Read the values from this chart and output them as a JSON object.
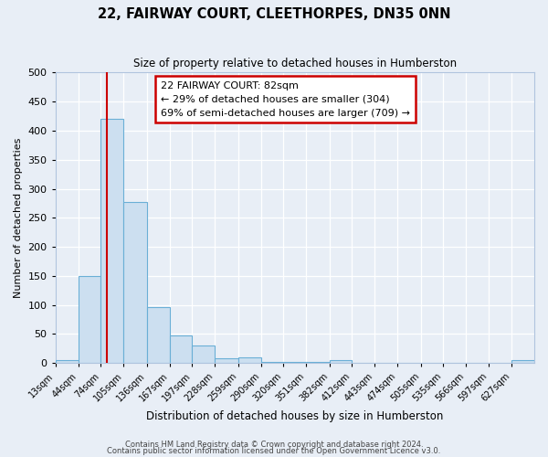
{
  "title": "22, FAIRWAY COURT, CLEETHORPES, DN35 0NN",
  "subtitle": "Size of property relative to detached houses in Humberston",
  "xlabel": "Distribution of detached houses by size in Humberston",
  "ylabel": "Number of detached properties",
  "bin_labels": [
    "13sqm",
    "44sqm",
    "74sqm",
    "105sqm",
    "136sqm",
    "167sqm",
    "197sqm",
    "228sqm",
    "259sqm",
    "290sqm",
    "320sqm",
    "351sqm",
    "382sqm",
    "412sqm",
    "443sqm",
    "474sqm",
    "505sqm",
    "535sqm",
    "566sqm",
    "597sqm",
    "627sqm"
  ],
  "bar_heights": [
    5,
    150,
    420,
    277,
    96,
    48,
    30,
    8,
    10,
    2,
    2,
    2,
    5,
    0,
    0,
    0,
    0,
    0,
    0,
    0,
    5
  ],
  "bar_color": "#ccdff0",
  "bar_edge_color": "#6aafd6",
  "annotation_line1": "22 FAIRWAY COURT: 82sqm",
  "annotation_line2": "← 29% of detached houses are smaller (304)",
  "annotation_line3": "69% of semi-detached houses are larger (709) →",
  "annotation_box_color": "#ffffff",
  "annotation_box_edge_color": "#cc0000",
  "red_line_x": 82,
  "ylim": [
    0,
    500
  ],
  "yticks": [
    0,
    50,
    100,
    150,
    200,
    250,
    300,
    350,
    400,
    450,
    500
  ],
  "bin_edges": [
    13,
    44,
    74,
    105,
    136,
    167,
    197,
    228,
    259,
    290,
    320,
    351,
    382,
    412,
    443,
    474,
    505,
    535,
    566,
    597,
    627,
    658
  ],
  "footnote1": "Contains HM Land Registry data © Crown copyright and database right 2024.",
  "footnote2": "Contains public sector information licensed under the Open Government Licence v3.0.",
  "bg_color": "#e8eef6",
  "plot_bg_color": "#e8eef6",
  "grid_color": "#ffffff",
  "spine_color": "#b0c4de"
}
